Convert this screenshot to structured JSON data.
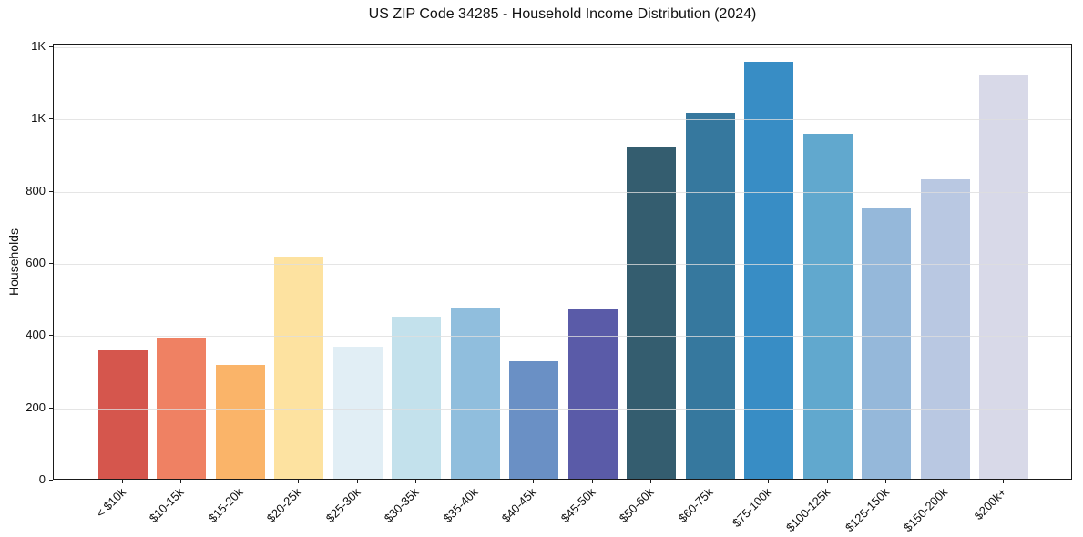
{
  "chart_data": {
    "type": "bar",
    "title": "US ZIP Code 34285 - Household Income Distribution (2024)",
    "xlabel": "",
    "ylabel": "Households",
    "categories": [
      "< $10k",
      "$10-15k",
      "$15-20k",
      "$20-25k",
      "$25-30k",
      "$30-35k",
      "$35-40k",
      "$40-45k",
      "$45-50k",
      "$50-60k",
      "$60-75k",
      "$75-100k",
      "$100-125k",
      "$125-150k",
      "$150-200k",
      "$200k+"
    ],
    "values": [
      355,
      390,
      315,
      615,
      365,
      450,
      475,
      325,
      470,
      920,
      1015,
      1155,
      955,
      750,
      830,
      1120
    ],
    "bar_colors": [
      "#d5564d",
      "#ef8163",
      "#fab469",
      "#fde2a0",
      "#e1eef5",
      "#c3e1ec",
      "#90bedd",
      "#6a90c5",
      "#5a5ba8",
      "#345d6f",
      "#36789e",
      "#388dc5",
      "#61a8ce",
      "#95b8da",
      "#b9c8e2",
      "#d8d9e8"
    ],
    "y_ticks": [
      {
        "value": 0,
        "label": "0"
      },
      {
        "value": 200,
        "label": "200"
      },
      {
        "value": 400,
        "label": "400"
      },
      {
        "value": 600,
        "label": "600"
      },
      {
        "value": 800,
        "label": "800"
      },
      {
        "value": 1000,
        "label": "1K"
      },
      {
        "value": 1200,
        "label": "1K"
      }
    ],
    "ylim": [
      0,
      1208
    ],
    "grid": "horizontal-over-bars",
    "legend": "none",
    "background": "#ffffff",
    "spine_color": "#1a1a1a",
    "grid_color": "#e2e2e2",
    "x_label_rotation_deg": 45
  }
}
